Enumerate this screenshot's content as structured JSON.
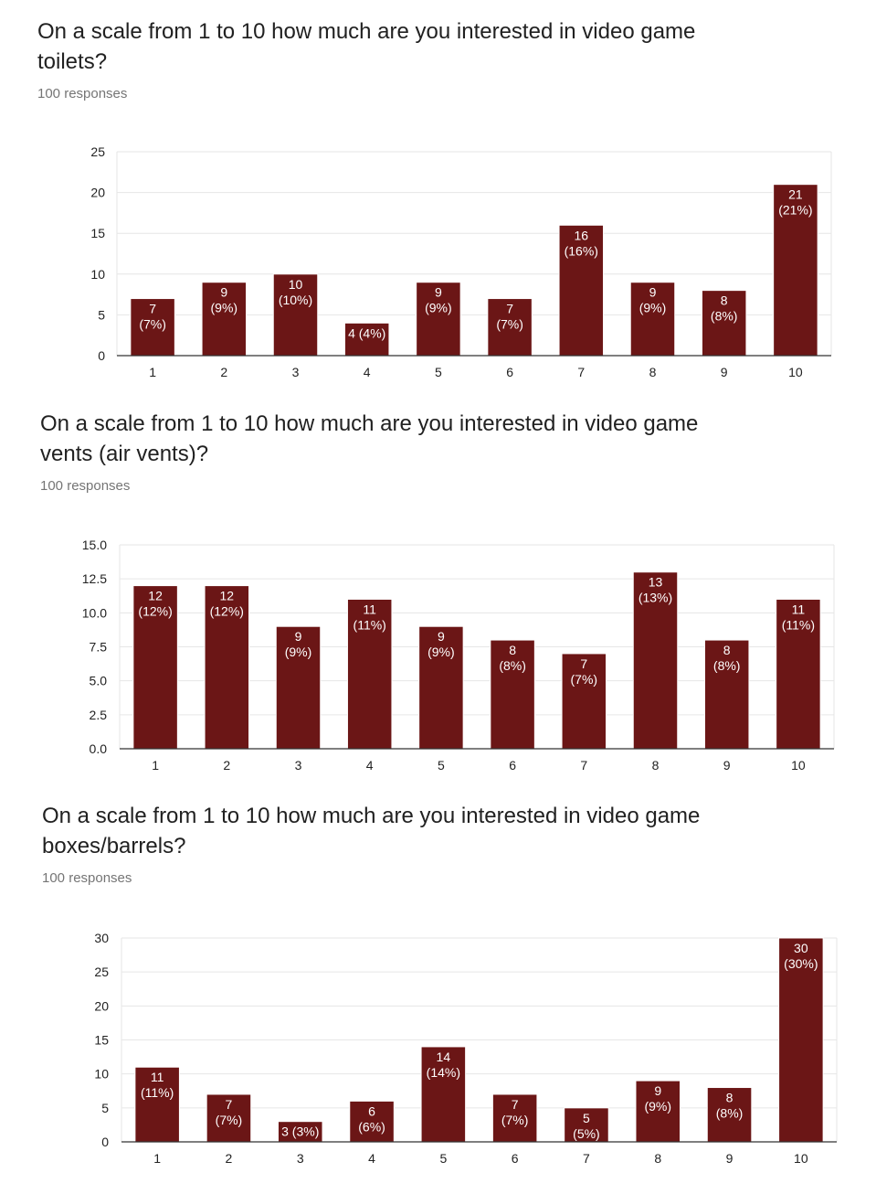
{
  "colors": {
    "bar": "#6b1616",
    "grid": "#e6e6e6",
    "axis": "#333333",
    "label": "#222222"
  },
  "questions": [
    {
      "title": "On a scale from 1 to 10 how much are you interested in video game toilets?",
      "responses": "100 responses"
    },
    {
      "title": "On a scale from 1 to 10 how much are you interested in video game vents (air vents)?",
      "responses": "100 responses"
    },
    {
      "title": "On a scale from 1 to 10 how much are you interested in video game boxes/barrels?",
      "responses": "100 responses"
    }
  ],
  "chart_data": [
    {
      "type": "bar",
      "categories": [
        "1",
        "2",
        "3",
        "4",
        "5",
        "6",
        "7",
        "8",
        "9",
        "10"
      ],
      "values": [
        7,
        9,
        10,
        4,
        9,
        7,
        16,
        9,
        8,
        21
      ],
      "data_labels": [
        "7 (7%)",
        "9 (9%)",
        "10 (10%)",
        "4 (4%)",
        "9 (9%)",
        "7 (7%)",
        "16 (16%)",
        "9 (9%)",
        "8 (8%)",
        "21 (21%)"
      ],
      "ylim": [
        0,
        25
      ],
      "yticks": [
        "0",
        "5",
        "10",
        "15",
        "20",
        "25"
      ],
      "grid": true
    },
    {
      "type": "bar",
      "categories": [
        "1",
        "2",
        "3",
        "4",
        "5",
        "6",
        "7",
        "8",
        "9",
        "10"
      ],
      "values": [
        12,
        12,
        9,
        11,
        9,
        8,
        7,
        13,
        8,
        11
      ],
      "data_labels": [
        "12 (12%)",
        "12 (12%)",
        "9 (9%)",
        "11 (11%)",
        "9 (9%)",
        "8 (8%)",
        "7 (7%)",
        "13 (13%)",
        "8 (8%)",
        "11 (11%)"
      ],
      "ylim": [
        0,
        15
      ],
      "yticks": [
        "0.0",
        "2.5",
        "5.0",
        "7.5",
        "10.0",
        "12.5",
        "15.0"
      ],
      "grid": true
    },
    {
      "type": "bar",
      "categories": [
        "1",
        "2",
        "3",
        "4",
        "5",
        "6",
        "7",
        "8",
        "9",
        "10"
      ],
      "values": [
        11,
        7,
        3,
        6,
        14,
        7,
        5,
        9,
        8,
        30
      ],
      "data_labels": [
        "11 (11%)",
        "7 (7%)",
        "3 (3%)",
        "6 (6%)",
        "14 (14%)",
        "7 (7%)",
        "5 (5%)",
        "9 (9%)",
        "8 (8%)",
        "30 (30%)"
      ],
      "ylim": [
        0,
        30
      ],
      "yticks": [
        "0",
        "5",
        "10",
        "15",
        "20",
        "25",
        "30"
      ],
      "grid": true
    }
  ]
}
